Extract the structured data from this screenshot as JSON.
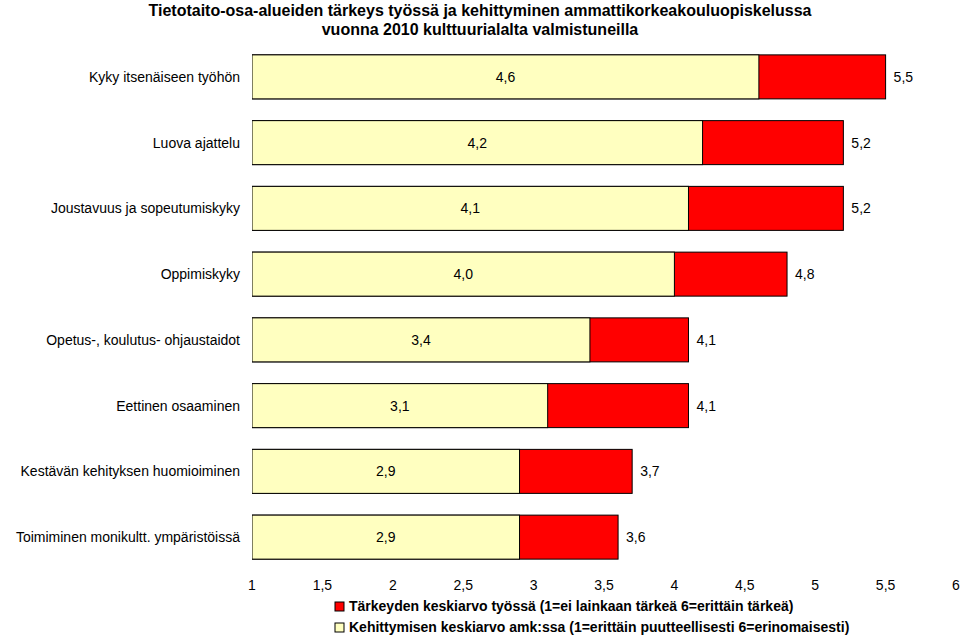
{
  "chart_data": {
    "type": "bar",
    "orientation": "horizontal",
    "stacked": false,
    "data_labels": true,
    "grid": false,
    "legend": "bottom",
    "title": "Tietotaito-osa-alueiden tärkeys työssä ja kehittyminen ammattikorkeakouluopiskelussa\nvuonna 2010 kulttuurialalta valmistuneilla",
    "categories": [
      "Kyky itsenäiseen työhön",
      "Luova ajattelu",
      "Joustavuus ja sopeutumiskyky",
      "Oppimiskyky",
      "Opetus-, koulutus- ohjaustaidot",
      "Eettinen osaaminen",
      "Kestävän kehityksen huomioiminen",
      "Toimiminen monikultt. ympäristöissä"
    ],
    "series": [
      {
        "name": "Tärkeyden keskiarvo työssä (1=ei lainkaan tärkeä 6=erittäin tärkeä)",
        "color": "#ff0000",
        "values": [
          5.5,
          5.2,
          5.2,
          4.8,
          4.1,
          4.1,
          3.7,
          3.6
        ],
        "value_labels": [
          "5,5",
          "5,2",
          "5,2",
          "4,8",
          "4,1",
          "4,1",
          "3,7",
          "3,6"
        ]
      },
      {
        "name": "Kehittymisen keskiarvo amk:ssa (1=erittäin puutteellisesti 6=erinomaisesti)",
        "color": "#ffffc0",
        "values": [
          4.6,
          4.2,
          4.1,
          4.0,
          3.4,
          3.1,
          2.9,
          2.9
        ],
        "value_labels": [
          "4,6",
          "4,2",
          "4,1",
          "4,0",
          "3,4",
          "3,1",
          "2,9",
          "2,9"
        ]
      }
    ],
    "xlim": [
      1,
      6
    ],
    "xticks": [
      1,
      {
        "value": 1.5,
        "label": "1,5"
      },
      2,
      {
        "value": 2.5,
        "label": "2,5"
      },
      3,
      {
        "value": 3.5,
        "label": "3,5"
      },
      4,
      {
        "value": 4.5,
        "label": "4,5"
      },
      5,
      {
        "value": 5.5,
        "label": "5,5"
      },
      6
    ]
  }
}
